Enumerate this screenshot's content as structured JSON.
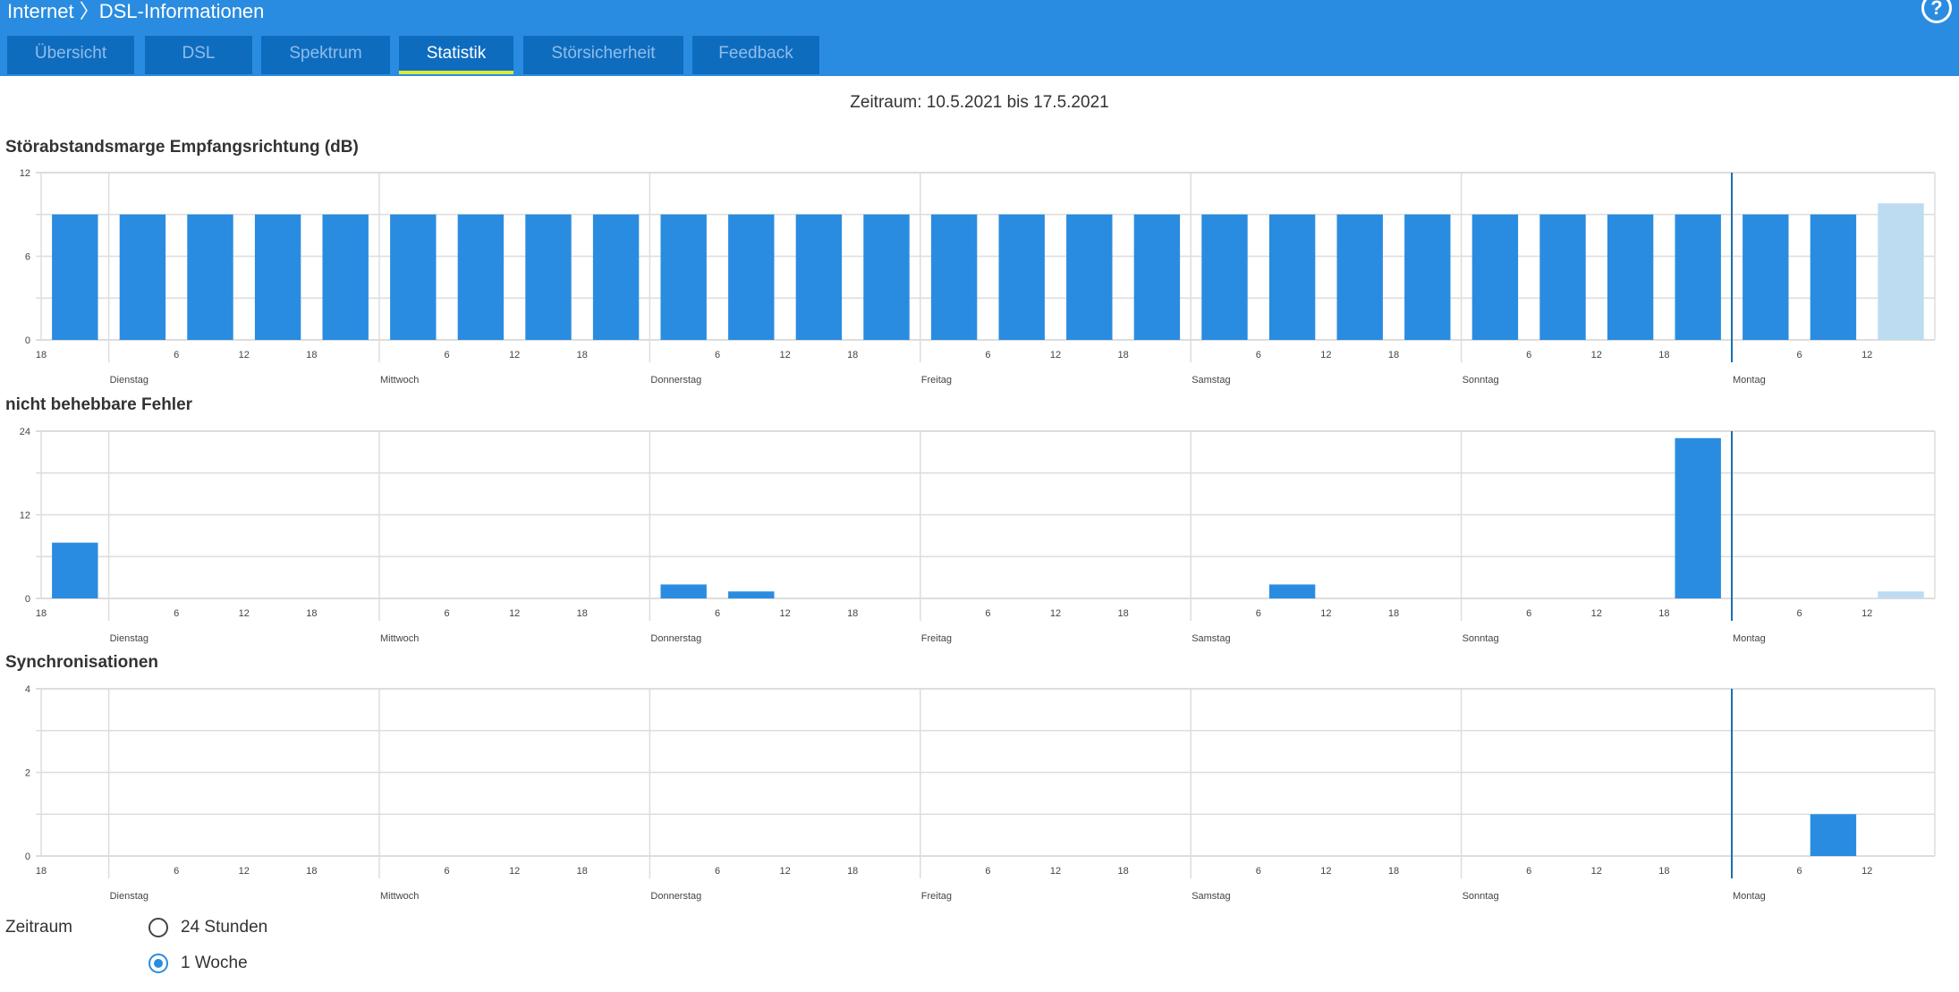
{
  "header": {
    "breadcrumb_root": "Internet",
    "breadcrumb_sep": "〉",
    "breadcrumb_page": "DSL-Informationen",
    "help": "?"
  },
  "tabs": [
    {
      "label": "Übersicht"
    },
    {
      "label": "DSL"
    },
    {
      "label": "Spektrum"
    },
    {
      "label": "Statistik",
      "active": true
    },
    {
      "label": "Störsicherheit"
    },
    {
      "label": "Feedback"
    }
  ],
  "period_text": "Zeitraum: 10.5.2021 bis 17.5.2021",
  "colors": {
    "bar": "#2a8ce0",
    "bar_pending": "#bddcf2",
    "now_line": "#1a6fae",
    "grid": "#dddddd"
  },
  "chart_data": [
    {
      "type": "bar",
      "title": "Störabstandsmarge Empfangsrichtung (dB)",
      "ylim": [
        0,
        12
      ],
      "yticks": [
        0,
        6,
        12
      ],
      "ygrid": [
        0,
        3,
        6,
        9,
        12
      ],
      "x_start": "Montag 18:00",
      "bin_hours": 6,
      "values": [
        9,
        9,
        9,
        9,
        9,
        9,
        9,
        9,
        9,
        9,
        9,
        9,
        9,
        9,
        9,
        9,
        9,
        9,
        9,
        9,
        9,
        9,
        9,
        9,
        9,
        9,
        9,
        9.8
      ],
      "pending_last": true
    },
    {
      "type": "bar",
      "title": "nicht behebbare Fehler",
      "ylim": [
        0,
        24
      ],
      "yticks": [
        0,
        12,
        24
      ],
      "ygrid": [
        0,
        6,
        12,
        18,
        24
      ],
      "x_start": "Montag 18:00",
      "bin_hours": 6,
      "values": [
        8,
        0,
        0,
        0,
        0,
        0,
        0,
        0,
        0,
        2,
        1,
        0,
        0,
        0,
        0,
        0,
        0,
        0,
        2,
        0,
        0,
        0,
        0,
        0,
        23,
        0,
        0,
        1
      ],
      "pending_last": true
    },
    {
      "type": "bar",
      "title": "Synchronisationen",
      "ylim": [
        0,
        4
      ],
      "yticks": [
        0,
        2,
        4
      ],
      "ygrid": [
        0,
        1,
        2,
        3,
        4
      ],
      "x_start": "Montag 18:00",
      "bin_hours": 6,
      "values": [
        0,
        0,
        0,
        0,
        0,
        0,
        0,
        0,
        0,
        0,
        0,
        0,
        0,
        0,
        0,
        0,
        0,
        0,
        0,
        0,
        0,
        0,
        0,
        0,
        0,
        0,
        1,
        0
      ],
      "pending_last": true
    }
  ],
  "x_axis": {
    "start_hour_label": "18",
    "hour_labels": [
      "6",
      "12",
      "18"
    ],
    "last_day_hour_labels": [
      "6",
      "12"
    ],
    "days": [
      "Dienstag",
      "Mittwoch",
      "Donnerstag",
      "Freitag",
      "Samstag",
      "Sonntag",
      "Montag"
    ]
  },
  "zeitraum": {
    "label": "Zeitraum",
    "options": [
      {
        "label": "24 Stunden",
        "selected": false
      },
      {
        "label": "1 Woche",
        "selected": true
      }
    ]
  }
}
